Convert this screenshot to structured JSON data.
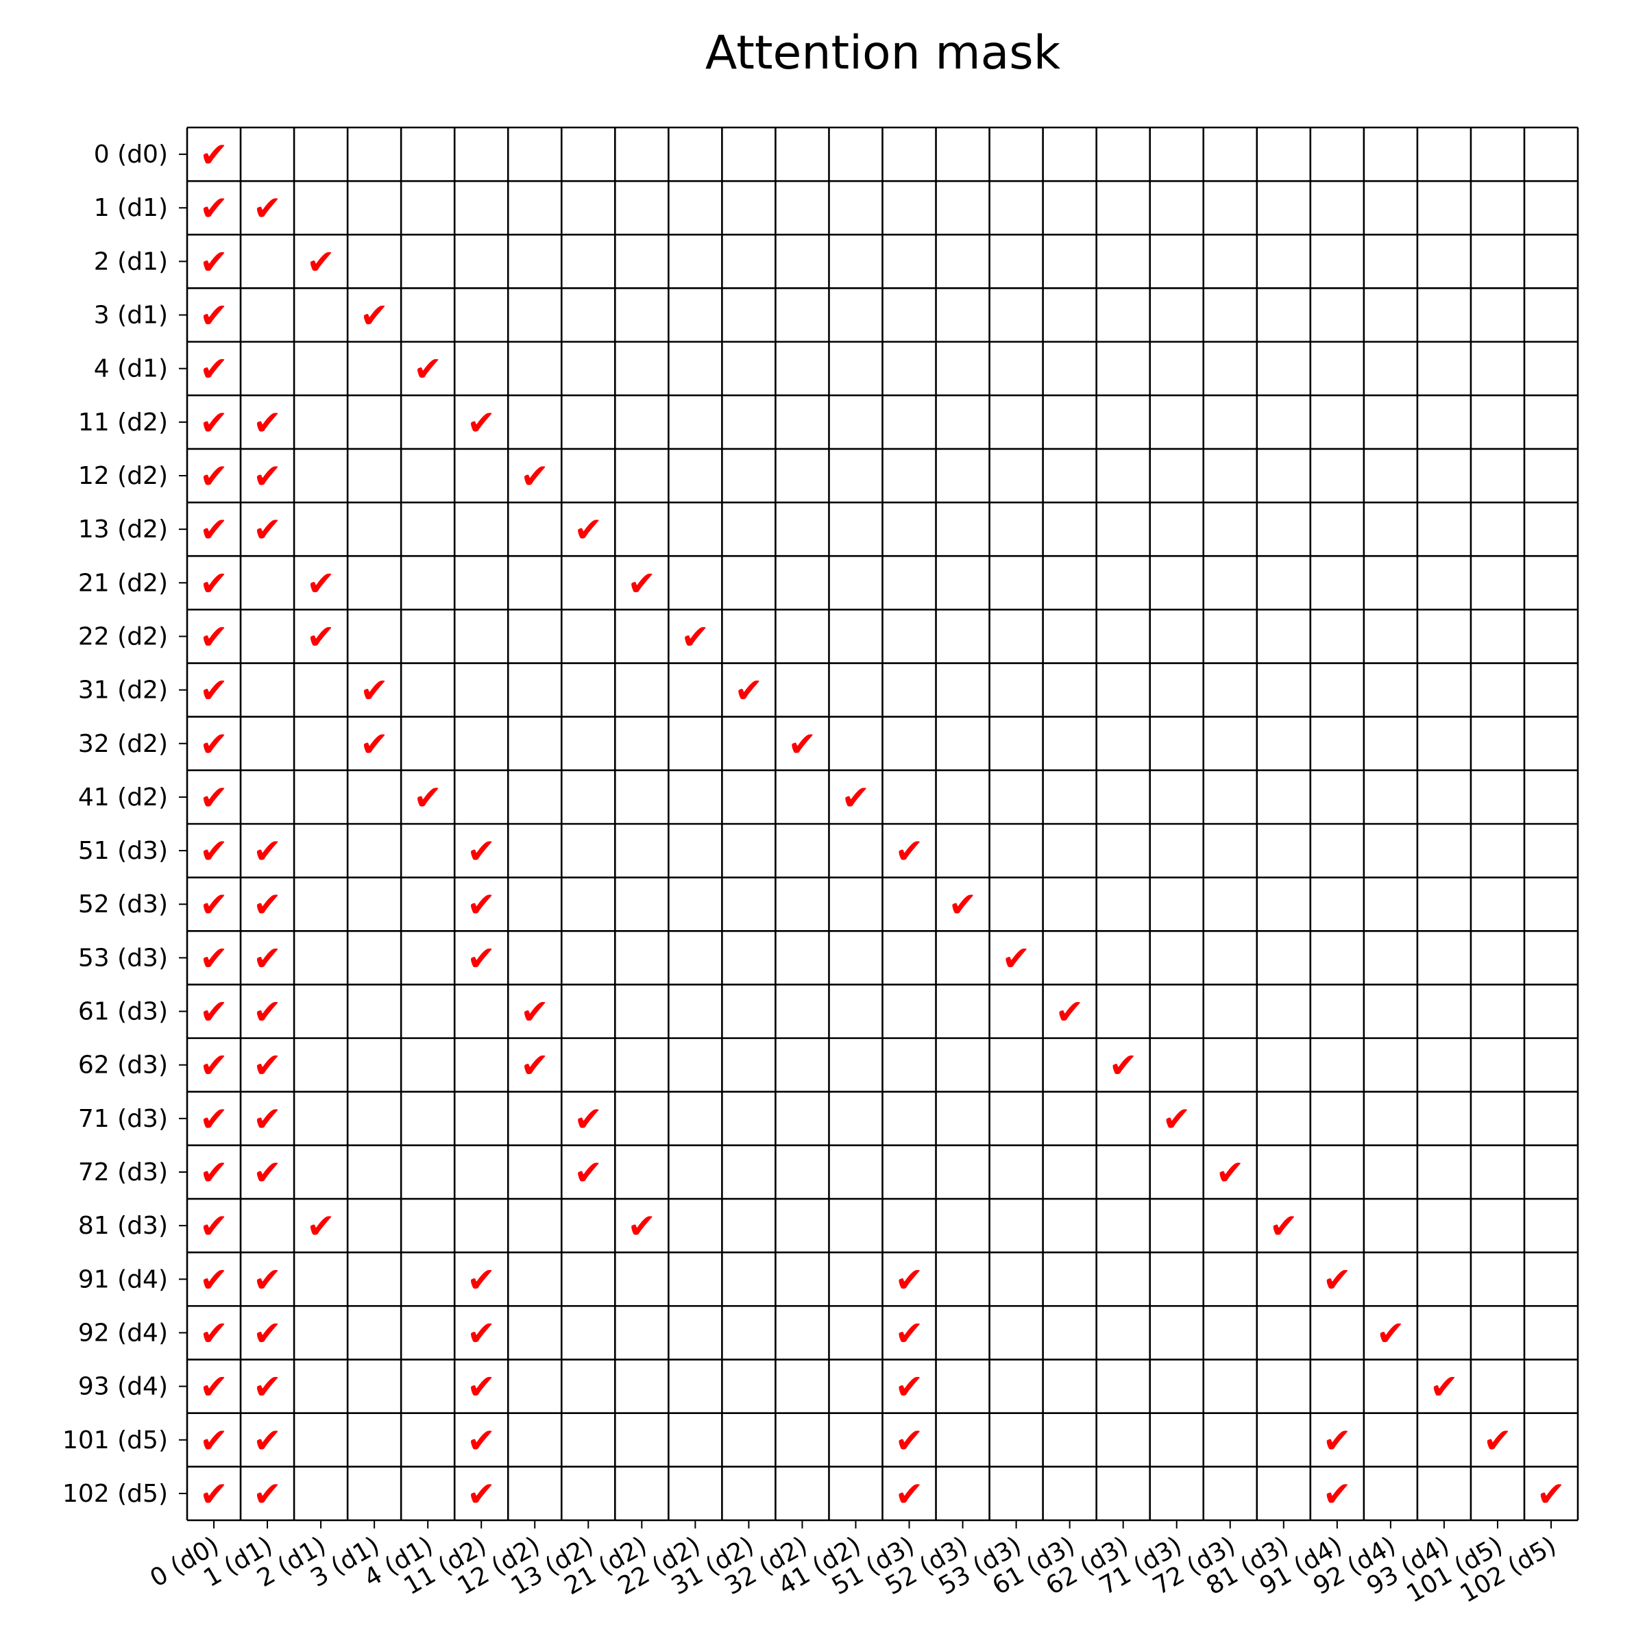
{
  "chart_data": {
    "type": "heatmap",
    "title": "Attention mask",
    "xlabel": "",
    "ylabel": "",
    "grid": true,
    "mark_symbol": "✔",
    "mark_color": "#ff0000",
    "grid_color": "#000000",
    "labels": [
      "0 (d0)",
      "1 (d1)",
      "2 (d1)",
      "3 (d1)",
      "4 (d1)",
      "11 (d2)",
      "12 (d2)",
      "13 (d2)",
      "21 (d2)",
      "22 (d2)",
      "31 (d2)",
      "32 (d2)",
      "41 (d2)",
      "51 (d3)",
      "52 (d3)",
      "53 (d3)",
      "61 (d3)",
      "62 (d3)",
      "71 (d3)",
      "72 (d3)",
      "81 (d3)",
      "91 (d4)",
      "92 (d4)",
      "93 (d4)",
      "101 (d5)",
      "102 (d5)"
    ],
    "mask_rows": [
      [
        0
      ],
      [
        0,
        1
      ],
      [
        0,
        2
      ],
      [
        0,
        3
      ],
      [
        0,
        4
      ],
      [
        0,
        1,
        5
      ],
      [
        0,
        1,
        6
      ],
      [
        0,
        1,
        7
      ],
      [
        0,
        2,
        8
      ],
      [
        0,
        2,
        9
      ],
      [
        0,
        3,
        10
      ],
      [
        0,
        3,
        11
      ],
      [
        0,
        4,
        12
      ],
      [
        0,
        1,
        5,
        13
      ],
      [
        0,
        1,
        5,
        14
      ],
      [
        0,
        1,
        5,
        15
      ],
      [
        0,
        1,
        6,
        16
      ],
      [
        0,
        1,
        6,
        17
      ],
      [
        0,
        1,
        7,
        18
      ],
      [
        0,
        1,
        7,
        19
      ],
      [
        0,
        2,
        8,
        20
      ],
      [
        0,
        1,
        5,
        13,
        21
      ],
      [
        0,
        1,
        5,
        13,
        22
      ],
      [
        0,
        1,
        5,
        13,
        23
      ],
      [
        0,
        1,
        5,
        13,
        21,
        24
      ],
      [
        0,
        1,
        5,
        13,
        21,
        25
      ]
    ]
  }
}
